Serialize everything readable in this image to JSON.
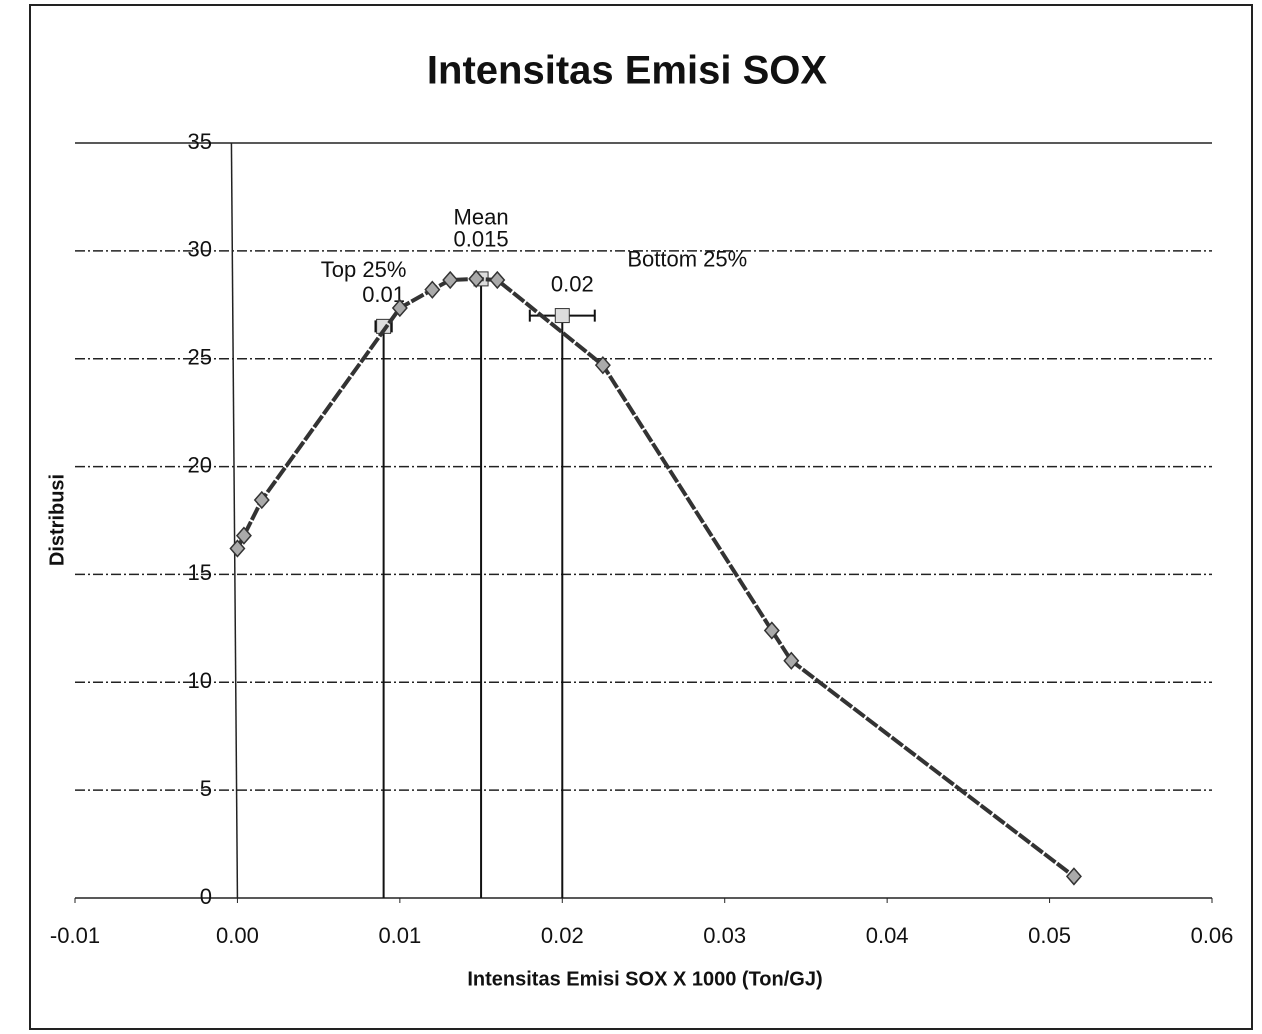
{
  "chart_data": {
    "type": "line",
    "title": "Intensitas Emisi SOX",
    "x_label": "Intensitas Emisi SOX X 1000 (Ton/GJ)",
    "y_label": "Distribusi",
    "x": [
      0,
      0.0004,
      0.0015,
      0.01,
      0.012,
      0.0131,
      0.0147,
      0.016,
      0.0225,
      0.0329,
      0.0341,
      0.0515
    ],
    "series": [
      {
        "color": "#333333",
        "marker_color": "#aaaaaa",
        "values": [
          16.2,
          16.8,
          18.45,
          27.35,
          28.2,
          28.65,
          28.7,
          28.65,
          24.7,
          12.4,
          11.0,
          1.0
        ]
      }
    ],
    "xlim": [
      -0.01,
      0.06
    ],
    "xticks": [
      -0.01,
      {
        "value": 0,
        "label": "0.00"
      },
      0.01,
      0.02,
      0.03,
      0.04,
      0.05,
      0.06
    ],
    "ylim": [
      0,
      35
    ],
    "yticks": [
      0,
      5,
      10,
      15,
      20,
      25,
      30,
      35
    ],
    "grid": true,
    "annotations": [
      {
        "text": "Top 25%",
        "value_label": "0.01",
        "x": 0.009,
        "y": 26.5,
        "xerr": 0.0005
      },
      {
        "text": "Mean",
        "value_label": "0.015",
        "x": 0.015,
        "y": 28.7
      },
      {
        "text": "Bottom 25%",
        "value_label": "0.02",
        "x": 0.02,
        "y": 27,
        "xerr": 0.002
      }
    ]
  }
}
